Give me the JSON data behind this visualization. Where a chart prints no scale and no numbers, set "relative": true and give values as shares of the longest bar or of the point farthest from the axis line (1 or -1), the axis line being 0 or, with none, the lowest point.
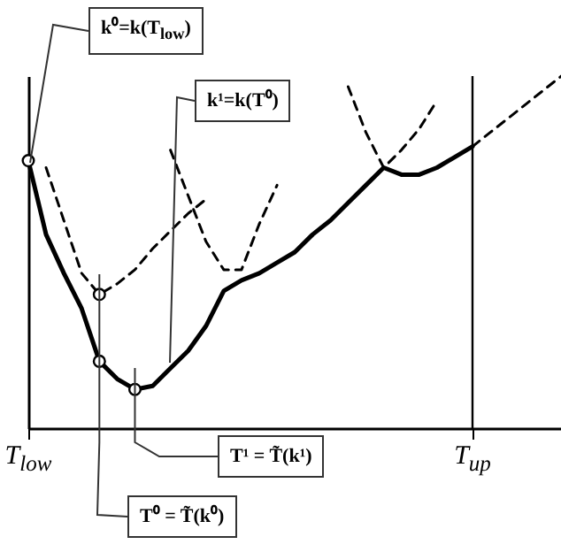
{
  "chart_data": {
    "type": "line",
    "relative": true,
    "grid": false,
    "categories": [
      "T$_{low}$",
      null,
      null,
      null,
      null,
      null,
      null,
      null,
      null,
      null,
      null,
      null,
      null,
      null,
      null,
      null,
      null,
      null,
      null,
      null,
      null,
      null,
      null,
      null,
      null,
      "T$_{up}$",
      null,
      null,
      null,
      null,
      null
    ],
    "series": [
      {
        "color": "#000000",
        "line_style": "solid",
        "values": [
          0.76,
          0.55,
          0.44,
          0.34,
          0.19,
          0.14,
          0.11,
          0.12,
          0.17,
          0.22,
          0.29,
          0.39,
          0.42,
          0.44,
          0.47,
          0.5,
          0.55,
          0.59,
          0.64,
          0.69,
          0.74,
          0.72,
          0.72,
          0.74,
          0.77,
          0.8,
          null,
          null,
          null,
          null,
          null
        ]
      },
      {
        "color": "#000000",
        "line_style": "dashed",
        "values": [
          null,
          0.74,
          0.59,
          0.44,
          0.38,
          0.41,
          0.45,
          0.51,
          0.56,
          0.61,
          0.65,
          null,
          null,
          null,
          null,
          null,
          null,
          null,
          null,
          null,
          null,
          null,
          null,
          null,
          null,
          null,
          null,
          null,
          null,
          null,
          null
        ]
      },
      {
        "color": "#000000",
        "line_style": "dashed",
        "values": [
          null,
          null,
          null,
          null,
          null,
          null,
          null,
          null,
          0.79,
          0.66,
          0.53,
          0.45,
          0.45,
          0.58,
          0.69,
          null,
          null,
          null,
          null,
          null,
          null,
          null,
          null,
          null,
          null,
          null,
          null,
          null,
          null,
          null,
          null
        ]
      },
      {
        "color": "#000000",
        "line_style": "dashed",
        "values": [
          null,
          null,
          null,
          null,
          null,
          null,
          null,
          null,
          null,
          null,
          null,
          null,
          null,
          null,
          null,
          null,
          null,
          null,
          0.97,
          0.84,
          0.74,
          0.79,
          0.85,
          0.93,
          null,
          null,
          null,
          null,
          null,
          null,
          null
        ]
      },
      {
        "color": "#000000",
        "line_style": "dashed",
        "values": [
          null,
          null,
          null,
          null,
          null,
          null,
          null,
          null,
          null,
          null,
          null,
          null,
          null,
          null,
          null,
          null,
          null,
          null,
          null,
          null,
          null,
          null,
          null,
          null,
          null,
          0.8,
          0.84,
          0.88,
          0.92,
          0.96,
          1.0
        ]
      },
      {
        "type": "scatter",
        "marker": "circle",
        "color": "#000000",
        "values": [
          0.76,
          null,
          null,
          null,
          0.38,
          null,
          0.11,
          null,
          null,
          null,
          null,
          null,
          null,
          null,
          null,
          null,
          null,
          null,
          null,
          null,
          null,
          null,
          null,
          null,
          null,
          null,
          null,
          null,
          null,
          null,
          null
        ]
      },
      {
        "type": "scatter",
        "marker": "circle",
        "color": "#000000",
        "values": [
          null,
          null,
          null,
          null,
          0.19,
          null,
          null,
          null,
          null,
          null,
          null,
          null,
          null,
          null,
          null,
          null,
          null,
          null,
          null,
          null,
          null,
          null,
          null,
          null,
          null,
          null,
          null,
          null,
          null,
          null,
          null
        ]
      }
    ],
    "ref_lines": [
      {
        "axis": "x",
        "value": "T$_{up}$"
      }
    ],
    "annotations": [
      "k⁰=k(T$_{low}$)",
      "k¹=k(T⁰)",
      "T¹ = T̃(k¹)",
      "T⁰ = T̃(k⁰)"
    ]
  }
}
